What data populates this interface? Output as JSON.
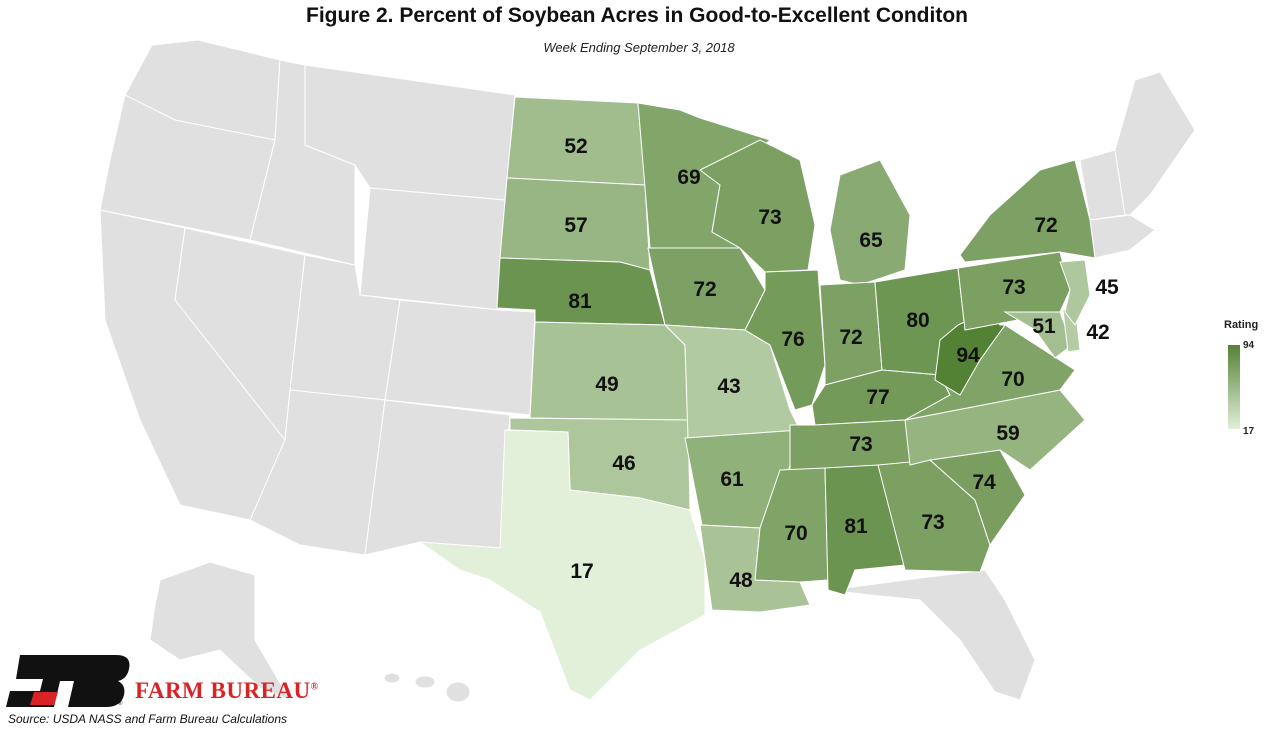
{
  "title": "Figure 2. Percent of Soybean Acres in Good-to-Excellent Conditon",
  "subtitle": "Week Ending September 3, 2018",
  "legend": {
    "title": "Rating",
    "max": "94",
    "min": "17",
    "color_low": "#e2efd9",
    "color_high": "#548235"
  },
  "colors": {
    "no_data": "#e0e0e0",
    "state_border": "#ffffff",
    "label": "#111111"
  },
  "states": [
    {
      "name": "ND",
      "value": 52
    },
    {
      "name": "SD",
      "value": 57
    },
    {
      "name": "NE",
      "value": 81
    },
    {
      "name": "KS",
      "value": 49
    },
    {
      "name": "OK",
      "value": 46
    },
    {
      "name": "TX",
      "value": 17
    },
    {
      "name": "MN",
      "value": 69
    },
    {
      "name": "IA",
      "value": 72
    },
    {
      "name": "MO",
      "value": 43
    },
    {
      "name": "AR",
      "value": 61
    },
    {
      "name": "LA",
      "value": 48
    },
    {
      "name": "WI",
      "value": 73
    },
    {
      "name": "IL",
      "value": 76
    },
    {
      "name": "MI",
      "value": 65
    },
    {
      "name": "IN",
      "value": 72
    },
    {
      "name": "OH",
      "value": 80
    },
    {
      "name": "KY",
      "value": 77
    },
    {
      "name": "TN",
      "value": 73
    },
    {
      "name": "MS",
      "value": 70
    },
    {
      "name": "AL",
      "value": 81
    },
    {
      "name": "GA",
      "value": 73
    },
    {
      "name": "SC",
      "value": 74
    },
    {
      "name": "NC",
      "value": 59
    },
    {
      "name": "VA",
      "value": 70
    },
    {
      "name": "WV",
      "value": 94
    },
    {
      "name": "PA",
      "value": 73
    },
    {
      "name": "NY",
      "value": 72
    },
    {
      "name": "MD",
      "value": 51
    },
    {
      "name": "DE",
      "value": 42
    },
    {
      "name": "NJ",
      "value": 45
    }
  ],
  "brand": "FARM BUREAU",
  "brand_mark": "®",
  "source": "Source: USDA NASS and Farm Bureau Calculations"
}
